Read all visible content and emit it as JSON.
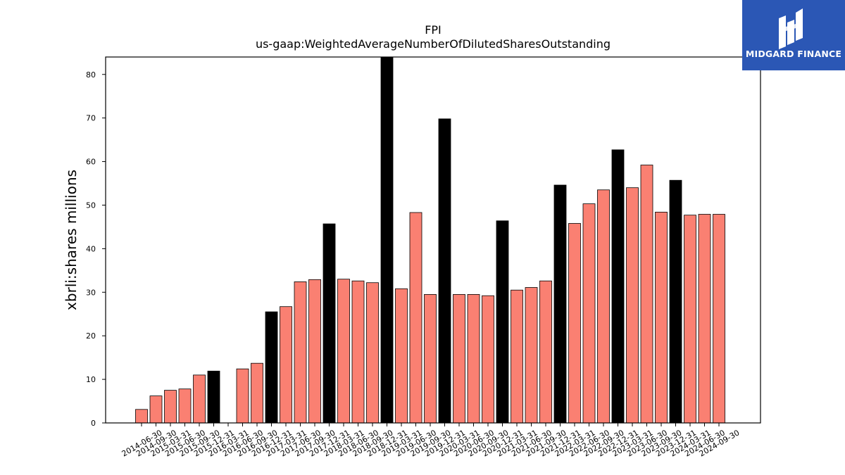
{
  "chart_data": {
    "type": "bar",
    "title": "FPI",
    "subtitle": "us-gaap:WeightedAverageNumberOfDilutedSharesOutstanding",
    "ylabel": "xbrli:shares millions",
    "xlabel": "",
    "ylim": [
      0,
      84
    ],
    "yticks": [
      "0",
      "10",
      "20",
      "30",
      "40",
      "50",
      "60",
      "70",
      "80"
    ],
    "grid": false,
    "colors": {
      "quarter": "#fa8072",
      "year_end": "#000000",
      "edge": "#000000"
    },
    "categories": [
      "2014-06-30",
      "2014-09-30",
      "2015-03-31",
      "2015-06-30",
      "2015-09-30",
      "2015-12-31",
      "2016-03-31",
      "2016-06-30",
      "2016-09-30",
      "2016-12-31",
      "2017-03-31",
      "2017-06-30",
      "2017-09-30",
      "2017-12-31",
      "2018-03-31",
      "2018-06-30",
      "2018-09-30",
      "2018-12-31",
      "2019-03-31",
      "2019-06-30",
      "2019-09-30",
      "2019-12-31",
      "2020-03-31",
      "2020-06-30",
      "2020-09-30",
      "2020-12-31",
      "2021-03-31",
      "2021-06-30",
      "2021-09-30",
      "2021-12-31",
      "2022-03-31",
      "2022-06-30",
      "2022-09-30",
      "2022-12-31",
      "2023-03-31",
      "2023-06-30",
      "2023-09-30",
      "2023-12-31",
      "2024-03-31",
      "2024-06-30",
      "2024-09-30"
    ],
    "values": [
      3.1,
      6.2,
      7.5,
      7.8,
      11.0,
      11.9,
      null,
      12.4,
      13.7,
      25.5,
      26.7,
      32.4,
      32.9,
      45.7,
      33.0,
      32.6,
      32.2,
      84.0,
      30.8,
      48.3,
      29.5,
      69.8,
      29.5,
      29.5,
      29.2,
      46.4,
      30.5,
      31.1,
      32.6,
      54.6,
      45.8,
      50.3,
      53.5,
      62.7,
      54.0,
      59.2,
      48.4,
      55.7,
      47.7,
      47.9,
      47.9
    ],
    "year_end": [
      false,
      false,
      false,
      false,
      false,
      true,
      false,
      false,
      false,
      true,
      false,
      false,
      false,
      true,
      false,
      false,
      false,
      true,
      false,
      false,
      false,
      true,
      false,
      false,
      false,
      true,
      false,
      false,
      false,
      true,
      false,
      false,
      false,
      true,
      false,
      false,
      false,
      true,
      false,
      false,
      false
    ]
  },
  "logo": {
    "text": "MIDGARD FINANCE",
    "background": "#2b57b5"
  }
}
